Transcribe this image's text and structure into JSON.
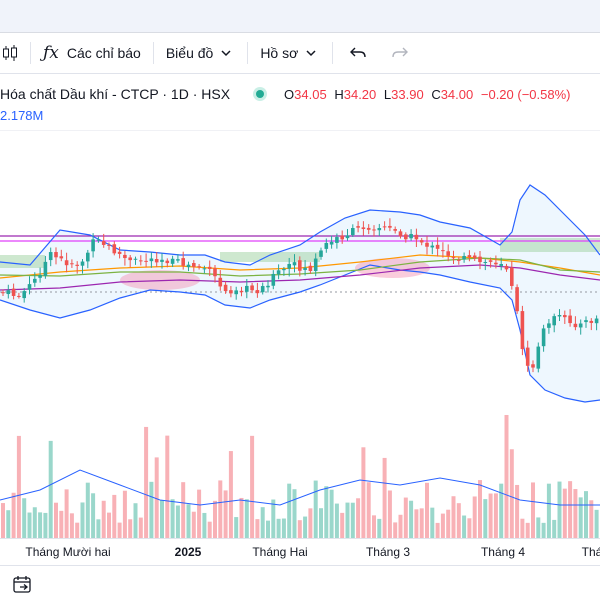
{
  "toolbar": {
    "indicators_label": "Các chỉ báo",
    "chart_type_label": "Biểu đồ",
    "profile_label": "Hồ sơ"
  },
  "legend": {
    "symbol": "Hóa chất Dầu khí - CTCP · 1D · HSX",
    "open_key": "O",
    "open": "34.05",
    "high_key": "H",
    "high": "34.20",
    "low_key": "L",
    "low": "33.90",
    "close_key": "C",
    "close": "34.00",
    "change": "−0.20 (−0.58%)",
    "volume": "2.178M",
    "colors": {
      "up": "#26a69a",
      "down": "#ef5350",
      "change": "#f23645"
    }
  },
  "xaxis": {
    "labels": [
      "Tháng Mười hai",
      "2025",
      "Tháng Hai",
      "Tháng 3",
      "Tháng 4",
      "Thá"
    ]
  },
  "chart_data": {
    "type": "candlestick",
    "indicators": [
      "bollinger-bands",
      "ichimoku-cloud",
      "moving-averages",
      "volume"
    ]
  }
}
